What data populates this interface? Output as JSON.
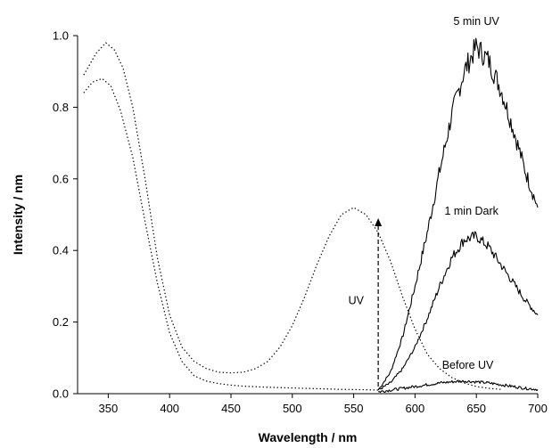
{
  "chart_data": {
    "type": "line",
    "xlabel": "Wavelength / nm",
    "ylabel": "Intensity / nm",
    "xlim": [
      325,
      700
    ],
    "ylim": [
      0,
      1.0
    ],
    "x_ticks": [
      350,
      400,
      450,
      500,
      550,
      600,
      650,
      700
    ],
    "y_ticks": [
      0.0,
      0.2,
      0.4,
      0.6,
      0.8,
      1.0
    ],
    "x_tick_labels": [
      "350",
      "400",
      "450",
      "500",
      "550",
      "600",
      "650",
      "700"
    ],
    "y_tick_labels": [
      "0.0",
      "0.2",
      "0.4",
      "0.6",
      "0.8",
      "1.0"
    ],
    "grid": false,
    "legend": "none",
    "series": [
      {
        "style": "dotted",
        "noisy": false,
        "x": [
          330,
          340,
          348,
          355,
          362,
          370,
          380,
          390,
          400,
          410,
          420,
          430,
          440,
          450,
          460,
          470,
          480,
          490,
          500,
          510,
          520,
          530,
          540,
          550,
          560,
          570,
          580,
          590,
          600,
          610,
          620,
          630,
          640,
          650,
          660,
          670
        ],
        "y": [
          0.89,
          0.95,
          0.98,
          0.96,
          0.91,
          0.8,
          0.6,
          0.38,
          0.22,
          0.13,
          0.09,
          0.07,
          0.06,
          0.058,
          0.06,
          0.07,
          0.09,
          0.13,
          0.19,
          0.27,
          0.36,
          0.44,
          0.5,
          0.52,
          0.5,
          0.45,
          0.37,
          0.27,
          0.18,
          0.11,
          0.07,
          0.045,
          0.03,
          0.02,
          0.015,
          0.012
        ]
      },
      {
        "style": "dotted",
        "noisy": false,
        "x": [
          330,
          337,
          345,
          352,
          360,
          370,
          380,
          390,
          400,
          410,
          420,
          430,
          440,
          450,
          460,
          480,
          500,
          520,
          540,
          560,
          570
        ],
        "y": [
          0.84,
          0.87,
          0.88,
          0.86,
          0.79,
          0.66,
          0.48,
          0.31,
          0.17,
          0.09,
          0.05,
          0.035,
          0.028,
          0.024,
          0.021,
          0.018,
          0.016,
          0.014,
          0.012,
          0.011,
          0.01
        ]
      },
      {
        "name": "5 min UV",
        "style": "solid",
        "noisy": true,
        "x": [
          570,
          580,
          590,
          600,
          610,
          620,
          630,
          640,
          650,
          660,
          670,
          680,
          690,
          700
        ],
        "y": [
          0.01,
          0.06,
          0.16,
          0.3,
          0.45,
          0.62,
          0.78,
          0.9,
          0.97,
          0.93,
          0.85,
          0.74,
          0.62,
          0.52
        ]
      },
      {
        "name": "1 min Dark",
        "style": "solid",
        "noisy": true,
        "x": [
          570,
          580,
          590,
          600,
          610,
          620,
          630,
          640,
          650,
          660,
          670,
          680,
          690,
          700
        ],
        "y": [
          0.01,
          0.03,
          0.07,
          0.13,
          0.21,
          0.3,
          0.38,
          0.43,
          0.44,
          0.41,
          0.36,
          0.31,
          0.26,
          0.22
        ]
      },
      {
        "name": "Before UV",
        "style": "solid",
        "noisy": true,
        "x": [
          570,
          580,
          590,
          600,
          610,
          620,
          630,
          640,
          650,
          660,
          670,
          680,
          690,
          700
        ],
        "y": [
          0.005,
          0.01,
          0.015,
          0.02,
          0.025,
          0.03,
          0.033,
          0.035,
          0.033,
          0.03,
          0.025,
          0.02,
          0.015,
          0.012
        ]
      }
    ],
    "annotations": [
      {
        "text": "5 min UV",
        "x": 650,
        "y": 1.03
      },
      {
        "text": "1 min Dark",
        "x": 646,
        "y": 0.5
      },
      {
        "text": "Before UV",
        "x": 643,
        "y": 0.07
      },
      {
        "text": "UV",
        "x": 552,
        "y": 0.25
      }
    ],
    "arrow": {
      "x": 570,
      "y_from": 0.02,
      "y_to": 0.49,
      "label": "UV"
    }
  }
}
